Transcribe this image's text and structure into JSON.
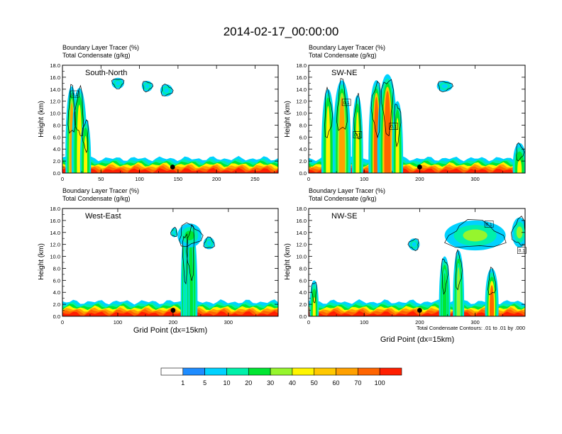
{
  "title": "2014-02-17_00:00:00",
  "subtitle_lines": [
    "Boundary Layer Tracer   (%)",
    "Total Condensate   (g/kg)"
  ],
  "ylabel": "Height (km)",
  "xlabel": "Grid Point (dx=15km)",
  "contour_note": "Total Condensate Contours: .01 to .01 by .000",
  "colorbar": {
    "labels": [
      "1",
      "5",
      "10",
      "20",
      "30",
      "40",
      "50",
      "60",
      "70",
      "100"
    ],
    "colors": [
      "#ffffff",
      "#1e8cff",
      "#00d2ff",
      "#00f0aa",
      "#00e632",
      "#96f52d",
      "#fff500",
      "#ffc800",
      "#ffa000",
      "#ff6400",
      "#ff1e00"
    ]
  },
  "chart_data": [
    {
      "type": "heatmap",
      "label": "South-North",
      "xlim": [
        0,
        280
      ],
      "ylim": [
        0,
        18
      ],
      "xticks": [
        0,
        50,
        100,
        150,
        200,
        250
      ],
      "yticks": [
        0.0,
        2.0,
        4.0,
        6.0,
        8.0,
        10.0,
        12.0,
        14.0,
        16.0,
        18.0
      ],
      "marker": {
        "x": 143,
        "y": 1.0
      },
      "contour_labels": [
        {
          "x": 16,
          "y": 13.2,
          "text": "0.1"
        }
      ],
      "plumes": [
        {
          "x": 12,
          "w": 8,
          "top": 14.5,
          "v": 60
        },
        {
          "x": 22,
          "w": 10,
          "top": 14.2,
          "v": 45
        },
        {
          "x": 30,
          "w": 7,
          "top": 9.0,
          "v": 40
        }
      ],
      "blobs": [
        {
          "x": 72,
          "y": 15.0,
          "rx": 8,
          "ry": 0.9,
          "v": 8
        },
        {
          "x": 110,
          "y": 14.5,
          "rx": 7,
          "ry": 0.9,
          "v": 8
        },
        {
          "x": 135,
          "y": 13.8,
          "rx": 8,
          "ry": 1.0,
          "v": 8
        }
      ]
    },
    {
      "type": "heatmap",
      "label": "SW-NE",
      "xlim": [
        0,
        390
      ],
      "ylim": [
        0,
        18
      ],
      "xticks": [
        0,
        100,
        200,
        300
      ],
      "yticks": [
        0.0,
        2.0,
        4.0,
        6.0,
        8.0,
        10.0,
        12.0,
        14.0,
        16.0,
        18.0
      ],
      "marker": {
        "x": 200,
        "y": 1.0
      },
      "contour_labels": [
        {
          "x": 68,
          "y": 11.8,
          "text": "0.1"
        },
        {
          "x": 88,
          "y": 6.4,
          "text": "0.1"
        },
        {
          "x": 153,
          "y": 7.8,
          "text": "0.1"
        }
      ],
      "plumes": [
        {
          "x": 35,
          "w": 12,
          "top": 14.0,
          "v": 40
        },
        {
          "x": 60,
          "w": 16,
          "top": 15.5,
          "v": 60
        },
        {
          "x": 88,
          "w": 10,
          "top": 13.0,
          "v": 40
        },
        {
          "x": 122,
          "w": 14,
          "top": 15.5,
          "v": 90
        },
        {
          "x": 142,
          "w": 18,
          "top": 16.5,
          "v": 90
        },
        {
          "x": 160,
          "w": 10,
          "top": 12.0,
          "v": 45
        },
        {
          "x": 380,
          "w": 12,
          "top": 5.0,
          "v": 40
        }
      ],
      "blobs": [
        {
          "x": 245,
          "y": 14.5,
          "rx": 14,
          "ry": 0.9,
          "v": 8
        }
      ]
    },
    {
      "type": "heatmap",
      "label": "West-East",
      "xlim": [
        0,
        390
      ],
      "ylim": [
        0,
        18
      ],
      "xticks": [
        0,
        100,
        200,
        300
      ],
      "yticks": [
        0.0,
        2.0,
        4.0,
        6.0,
        8.0,
        10.0,
        12.0,
        14.0,
        16.0,
        18.0
      ],
      "marker": {
        "x": 200,
        "y": 1.0
      },
      "contour_labels": [],
      "plumes": [
        {
          "x": 232,
          "w": 12,
          "top": 15.5,
          "v": 20
        },
        {
          "x": 222,
          "w": 8,
          "top": 14.5,
          "v": 15
        }
      ],
      "blobs": [
        {
          "x": 230,
          "y": 13.5,
          "rx": 22,
          "ry": 2.0,
          "v": 25
        },
        {
          "x": 265,
          "y": 12.2,
          "rx": 10,
          "ry": 1.0,
          "v": 8
        },
        {
          "x": 202,
          "y": 14.0,
          "rx": 6,
          "ry": 0.8,
          "v": 8
        }
      ]
    },
    {
      "type": "heatmap",
      "label": "NW-SE",
      "xlim": [
        0,
        390
      ],
      "ylim": [
        0,
        18
      ],
      "xticks": [
        0,
        100,
        200,
        300
      ],
      "yticks": [
        0.0,
        2.0,
        4.0,
        6.0,
        8.0,
        10.0,
        12.0,
        14.0,
        16.0,
        18.0
      ],
      "marker": {
        "x": 200,
        "y": 1.0
      },
      "contour_labels": [
        {
          "x": 325,
          "y": 15.4,
          "text": "0.1"
        },
        {
          "x": 384,
          "y": 11.0,
          "text": "0.1"
        }
      ],
      "plumes": [
        {
          "x": 10,
          "w": 8,
          "top": 6.0,
          "v": 40
        },
        {
          "x": 245,
          "w": 10,
          "top": 10.0,
          "v": 25
        },
        {
          "x": 270,
          "w": 10,
          "top": 11.0,
          "v": 30
        },
        {
          "x": 330,
          "w": 12,
          "top": 8.0,
          "v": 70
        }
      ],
      "blobs": [
        {
          "x": 300,
          "y": 13.5,
          "rx": 55,
          "ry": 2.5,
          "v": 30
        },
        {
          "x": 380,
          "y": 14.0,
          "rx": 14,
          "ry": 2.5,
          "v": 35
        },
        {
          "x": 190,
          "y": 12.0,
          "rx": 10,
          "ry": 1.0,
          "v": 8
        }
      ]
    }
  ]
}
